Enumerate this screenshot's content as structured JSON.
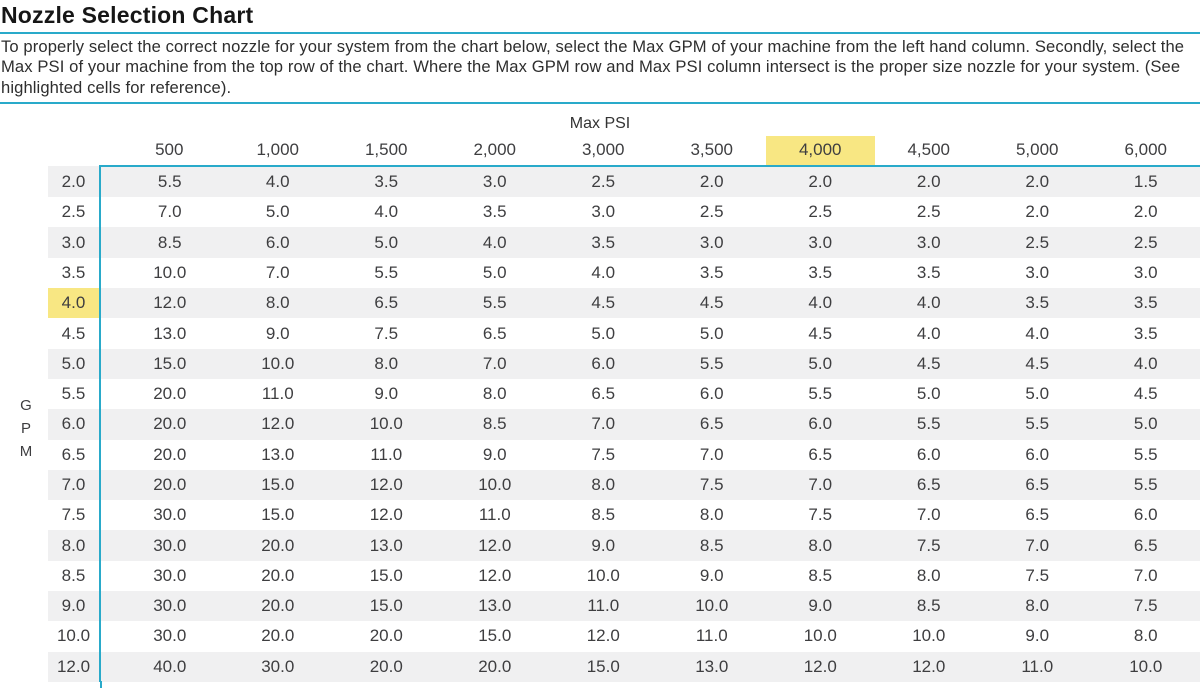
{
  "title": "Nozzle Selection Chart",
  "description": "To properly select the correct nozzle for your system from the chart below, select the Max GPM of your machine from the left hand column. Secondly, select the Max PSI of your machine from the top row of the chart. Where the Max GPM row and Max PSI column intersect is the proper size nozzle for your system. (See highlighted cells for reference).",
  "axis": {
    "col_group_label": "Max PSI",
    "row_group_label": "GPM",
    "row_letters": [
      "G",
      "P",
      "M"
    ]
  },
  "colors": {
    "accent_cyan": "#29aaca",
    "highlight_yellow": "#f8e783",
    "row_stripe_gray": "#f0f0f1"
  },
  "chart_data": {
    "type": "table",
    "title": "Nozzle Selection Chart",
    "column_group_label": "Max PSI",
    "row_group_label": "GPM",
    "psi_columns": [
      "500",
      "1,000",
      "1,500",
      "2,000",
      "3,000",
      "3,500",
      "4,000",
      "4,500",
      "5,000",
      "6,000"
    ],
    "gpm_rows": [
      "2.0",
      "2.5",
      "3.0",
      "3.5",
      "4.0",
      "4.5",
      "5.0",
      "5.5",
      "6.0",
      "6.5",
      "7.0",
      "7.5",
      "8.0",
      "8.5",
      "9.0",
      "10.0",
      "12.0"
    ],
    "values": [
      [
        "5.5",
        "4.0",
        "3.5",
        "3.0",
        "2.5",
        "2.0",
        "2.0",
        "2.0",
        "2.0",
        "1.5"
      ],
      [
        "7.0",
        "5.0",
        "4.0",
        "3.5",
        "3.0",
        "2.5",
        "2.5",
        "2.5",
        "2.0",
        "2.0"
      ],
      [
        "8.5",
        "6.0",
        "5.0",
        "4.0",
        "3.5",
        "3.0",
        "3.0",
        "3.0",
        "2.5",
        "2.5"
      ],
      [
        "10.0",
        "7.0",
        "5.5",
        "5.0",
        "4.0",
        "3.5",
        "3.5",
        "3.5",
        "3.0",
        "3.0"
      ],
      [
        "12.0",
        "8.0",
        "6.5",
        "5.5",
        "4.5",
        "4.5",
        "4.0",
        "4.0",
        "3.5",
        "3.5"
      ],
      [
        "13.0",
        "9.0",
        "7.5",
        "6.5",
        "5.0",
        "5.0",
        "4.5",
        "4.0",
        "4.0",
        "3.5"
      ],
      [
        "15.0",
        "10.0",
        "8.0",
        "7.0",
        "6.0",
        "5.5",
        "5.0",
        "4.5",
        "4.5",
        "4.0"
      ],
      [
        "20.0",
        "11.0",
        "9.0",
        "8.0",
        "6.5",
        "6.0",
        "5.5",
        "5.0",
        "5.0",
        "4.5"
      ],
      [
        "20.0",
        "12.0",
        "10.0",
        "8.5",
        "7.0",
        "6.5",
        "6.0",
        "5.5",
        "5.5",
        "5.0"
      ],
      [
        "20.0",
        "13.0",
        "11.0",
        "9.0",
        "7.5",
        "7.0",
        "6.5",
        "6.0",
        "6.0",
        "5.5"
      ],
      [
        "20.0",
        "15.0",
        "12.0",
        "10.0",
        "8.0",
        "7.5",
        "7.0",
        "6.5",
        "6.5",
        "5.5"
      ],
      [
        "30.0",
        "15.0",
        "12.0",
        "11.0",
        "8.5",
        "8.0",
        "7.5",
        "7.0",
        "6.5",
        "6.0"
      ],
      [
        "30.0",
        "20.0",
        "13.0",
        "12.0",
        "9.0",
        "8.5",
        "8.0",
        "7.5",
        "7.0",
        "6.5"
      ],
      [
        "30.0",
        "20.0",
        "15.0",
        "12.0",
        "10.0",
        "9.0",
        "8.5",
        "8.0",
        "7.5",
        "7.0"
      ],
      [
        "30.0",
        "20.0",
        "15.0",
        "13.0",
        "11.0",
        "10.0",
        "9.0",
        "8.5",
        "8.0",
        "7.5"
      ],
      [
        "30.0",
        "20.0",
        "20.0",
        "15.0",
        "12.0",
        "11.0",
        "10.0",
        "10.0",
        "9.0",
        "8.0"
      ],
      [
        "40.0",
        "30.0",
        "20.0",
        "20.0",
        "15.0",
        "13.0",
        "12.0",
        "12.0",
        "11.0",
        "10.0"
      ]
    ],
    "highlight": {
      "psi_column": "4,000",
      "psi_col_index": 6,
      "gpm_row": "4.0",
      "gpm_row_index": 4,
      "intersect_value": "4.0"
    },
    "layout": {
      "striped_rows": "odd",
      "grid": "off",
      "header_rule_color": "#29aaca"
    }
  }
}
